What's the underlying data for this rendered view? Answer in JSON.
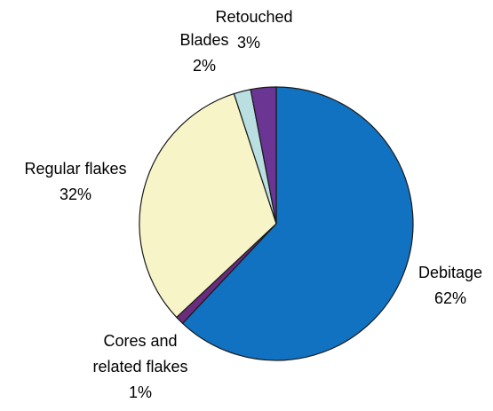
{
  "chart_data": {
    "type": "pie",
    "title": "",
    "start_angle_deg": 0,
    "direction": "clockwise",
    "slices": [
      {
        "label_lines": [
          "Debitage"
        ],
        "pct_label": "62%",
        "value": 62,
        "color": "#1072C0"
      },
      {
        "label_lines": [
          "Cores and",
          "related flakes"
        ],
        "pct_label": "1%",
        "value": 1,
        "color": "#6B2C7E"
      },
      {
        "label_lines": [
          "Regular flakes"
        ],
        "pct_label": "32%",
        "value": 32,
        "color": "#F7F4C8"
      },
      {
        "label_lines": [
          "Blades"
        ],
        "pct_label": "2%",
        "value": 2,
        "color": "#B9DFE0"
      },
      {
        "label_lines": [
          "Retouched"
        ],
        "pct_label": "3%",
        "value": 3,
        "color": "#6B3593"
      }
    ]
  }
}
